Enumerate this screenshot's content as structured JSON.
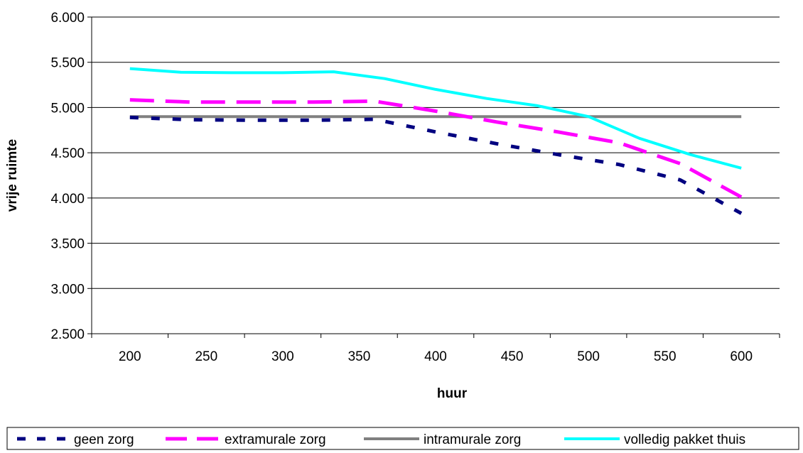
{
  "chart_data": {
    "type": "line",
    "title": "",
    "xlabel": "huur",
    "ylabel": "vrije ruimte",
    "x_tick_labels": [
      "200",
      "250",
      "300",
      "350",
      "400",
      "450",
      "500",
      "550",
      "600"
    ],
    "y_tick_labels": [
      "2.500",
      "3.000",
      "3.500",
      "4.000",
      "4.500",
      "5.000",
      "5.500",
      "6.000"
    ],
    "y_ticks": [
      2500,
      3000,
      3500,
      4000,
      4500,
      5000,
      5500,
      6000
    ],
    "ylim": [
      2500,
      6000
    ],
    "grid": "horizontal",
    "legend_position": "bottom",
    "series": [
      {
        "name": "geen zorg",
        "color": "#000080",
        "style": "dotted",
        "values": [
          4890,
          4865,
          4860,
          4860,
          4870,
          4730,
          4600,
          4480,
          4370,
          4200,
          3830
        ]
      },
      {
        "name": "extramurale zorg",
        "color": "#FF00FF",
        "style": "dashed",
        "values": [
          5085,
          5060,
          5060,
          5060,
          5070,
          4960,
          4840,
          4730,
          4610,
          4380,
          4010
        ]
      },
      {
        "name": "intramurale zorg",
        "color": "#808080",
        "style": "solid",
        "values": [
          4900,
          4900,
          4900,
          4900,
          4900,
          4900,
          4900,
          4900,
          4900,
          4900,
          4900
        ]
      },
      {
        "name": "volledig pakket thuis",
        "color": "#00FFFF",
        "style": "solid",
        "values": [
          5430,
          5390,
          5385,
          5385,
          5395,
          5320,
          5200,
          5100,
          5020,
          4900,
          4660,
          4480,
          4330
        ]
      }
    ]
  }
}
